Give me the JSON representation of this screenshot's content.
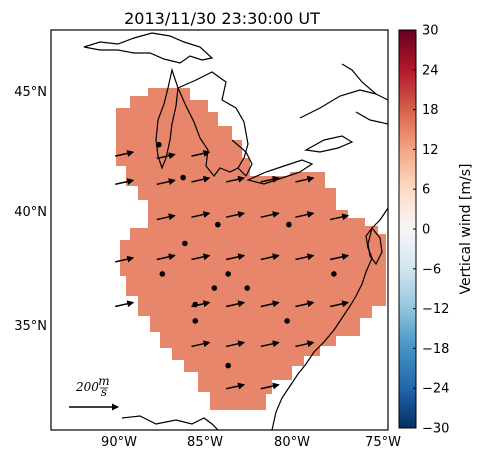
{
  "title": "2013/11/30 23:30:00 UT",
  "map": {
    "lat_ticks": [
      "45°N",
      "40°N",
      "35°N"
    ],
    "lon_ticks": [
      "90°W",
      "85°W",
      "80°W",
      "75°W"
    ],
    "field_color": "#e8866b",
    "scale_label": "200",
    "scale_units_num": "m",
    "scale_units_den": "s"
  },
  "colorbar": {
    "label": "Vertical wind [m/s]",
    "ticks": [
      "30",
      "24",
      "18",
      "12",
      "6",
      "0",
      "−6",
      "−12",
      "−18",
      "−24",
      "−30"
    ],
    "vmin": -30,
    "vmax": 30,
    "colors": [
      "#67001f",
      "#b2182b",
      "#d6604d",
      "#f4a582",
      "#fddbc7",
      "#f7f7f7",
      "#d1e5f0",
      "#92c5de",
      "#4393c3",
      "#2166ac",
      "#053061"
    ]
  },
  "chart_data": {
    "type": "heatmap",
    "title": "2013/11/30 23:30:00 UT",
    "colorbar_label": "Vertical wind [m/s]",
    "colorbar_range": [
      -30,
      30
    ],
    "field_value_approx_mps": 15,
    "lat_range_deg_N": [
      30.5,
      47.5
    ],
    "lon_range_deg_W": [
      94,
      75
    ],
    "wind_vectors": [
      {
        "lon": -89.7,
        "lat": 42.4
      },
      {
        "lon": -87.3,
        "lat": 42.3
      },
      {
        "lon": -85.3,
        "lat": 42.4
      },
      {
        "lon": -89.7,
        "lat": 41.2
      },
      {
        "lon": -87.3,
        "lat": 41.2
      },
      {
        "lon": -85.3,
        "lat": 41.3
      },
      {
        "lon": -83.3,
        "lat": 41.3
      },
      {
        "lon": -81.3,
        "lat": 41.3
      },
      {
        "lon": -79.3,
        "lat": 41.3
      },
      {
        "lon": -87.3,
        "lat": 39.7
      },
      {
        "lon": -85.3,
        "lat": 39.8
      },
      {
        "lon": -83.3,
        "lat": 39.8
      },
      {
        "lon": -81.3,
        "lat": 39.8
      },
      {
        "lon": -79.3,
        "lat": 39.8
      },
      {
        "lon": -77.3,
        "lat": 39.7
      },
      {
        "lon": -89.7,
        "lat": 37.9
      },
      {
        "lon": -87.3,
        "lat": 38.0
      },
      {
        "lon": -85.3,
        "lat": 38.0
      },
      {
        "lon": -83.3,
        "lat": 38.0
      },
      {
        "lon": -81.3,
        "lat": 38.0
      },
      {
        "lon": -79.3,
        "lat": 38.0
      },
      {
        "lon": -77.3,
        "lat": 38.0
      },
      {
        "lon": -89.7,
        "lat": 36.0
      },
      {
        "lon": -85.3,
        "lat": 36.0
      },
      {
        "lon": -83.3,
        "lat": 36.0
      },
      {
        "lon": -81.3,
        "lat": 36.0
      },
      {
        "lon": -79.3,
        "lat": 36.0
      },
      {
        "lon": -77.3,
        "lat": 36.0
      },
      {
        "lon": -85.3,
        "lat": 34.3
      },
      {
        "lon": -83.3,
        "lat": 34.3
      },
      {
        "lon": -81.3,
        "lat": 34.3
      },
      {
        "lon": -79.3,
        "lat": 34.3
      },
      {
        "lon": -83.3,
        "lat": 32.5
      },
      {
        "lon": -81.3,
        "lat": 32.5
      }
    ],
    "stations": [
      {
        "lon": -87.7,
        "lat": 42.8
      },
      {
        "lon": -86.3,
        "lat": 41.4
      },
      {
        "lon": -84.3,
        "lat": 39.4
      },
      {
        "lon": -80.2,
        "lat": 39.4
      },
      {
        "lon": -86.2,
        "lat": 38.6
      },
      {
        "lon": -87.5,
        "lat": 37.3
      },
      {
        "lon": -83.7,
        "lat": 37.3
      },
      {
        "lon": -84.5,
        "lat": 36.7
      },
      {
        "lon": -82.6,
        "lat": 36.7
      },
      {
        "lon": -77.6,
        "lat": 37.3
      },
      {
        "lon": -85.6,
        "lat": 36.0
      },
      {
        "lon": -85.6,
        "lat": 35.3
      },
      {
        "lon": -80.3,
        "lat": 35.3
      },
      {
        "lon": -83.7,
        "lat": 33.4
      }
    ]
  }
}
